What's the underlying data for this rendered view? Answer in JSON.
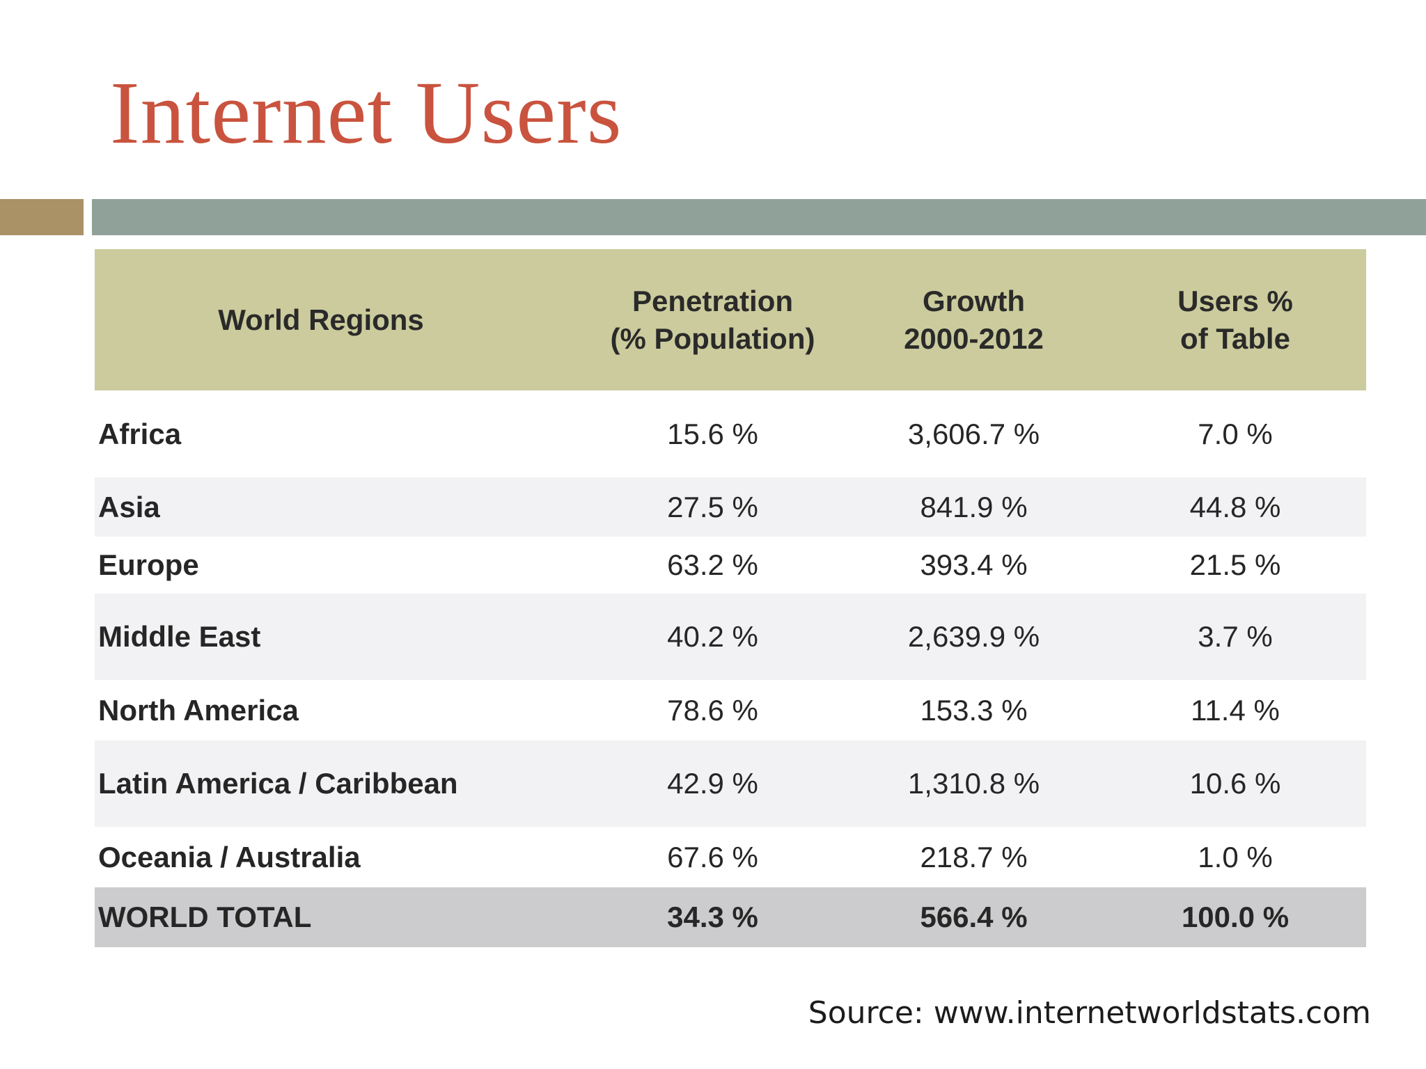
{
  "title": "Internet Users",
  "table": {
    "headers": [
      [
        "World Regions"
      ],
      [
        "Penetration",
        "(% Population)"
      ],
      [
        "Growth",
        "2000-2012"
      ],
      [
        "Users %",
        "of Table"
      ]
    ],
    "rows": [
      [
        "Africa",
        "15.6 %",
        "3,606.7 %",
        "7.0 %"
      ],
      [
        "Asia",
        "27.5 %",
        "841.9 %",
        "44.8 %"
      ],
      [
        "Europe",
        "63.2 %",
        "393.4 %",
        "21.5 %"
      ],
      [
        "Middle East",
        "40.2 %",
        "2,639.9 %",
        "3.7 %"
      ],
      [
        "North America",
        "78.6 %",
        "153.3 %",
        "11.4 %"
      ],
      [
        "Latin America / Caribbean",
        "42.9 %",
        "1,310.8 %",
        "10.6 %"
      ],
      [
        "Oceania / Australia",
        "67.6 %",
        "218.7 %",
        "1.0 %"
      ]
    ],
    "total": [
      "WORLD TOTAL",
      "34.3 %",
      "566.4 %",
      "100.0 %"
    ]
  },
  "source": "Source: www.internetworldstats.com",
  "colors": {
    "title": "#c9533e",
    "accent_left": "#aa9166",
    "accent_right": "#8fa198",
    "header_bg": "#cbcb9d",
    "band_bg": "#f2f1f3",
    "total_bg": "#cccbcd"
  }
}
